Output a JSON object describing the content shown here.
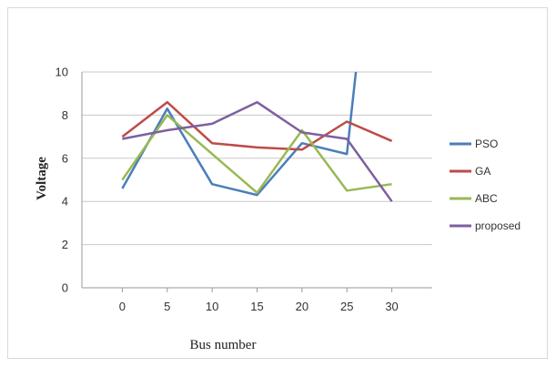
{
  "chart_data": {
    "type": "line",
    "title": "",
    "xlabel": "Bus number",
    "ylabel": "Voltage",
    "x": [
      0,
      5,
      10,
      15,
      20,
      25,
      26,
      30
    ],
    "categories": [
      "0",
      "5",
      "10",
      "15",
      "20",
      "25",
      "30"
    ],
    "ylim": [
      0,
      10
    ],
    "yticks": [
      "0",
      "2",
      "4",
      "6",
      "8",
      "10"
    ],
    "grid": true,
    "legend_position": "right",
    "series": [
      {
        "name": "PSO",
        "color": "#4a7ebb",
        "points": [
          [
            0,
            4.6
          ],
          [
            5,
            8.3
          ],
          [
            10,
            4.8
          ],
          [
            15,
            4.3
          ],
          [
            20,
            6.7
          ],
          [
            25,
            6.2
          ],
          [
            26,
            10
          ]
        ]
      },
      {
        "name": "GA",
        "color": "#be4b48",
        "points": [
          [
            0,
            7.0
          ],
          [
            5,
            8.6
          ],
          [
            10,
            6.7
          ],
          [
            15,
            6.5
          ],
          [
            20,
            6.4
          ],
          [
            25,
            7.7
          ],
          [
            30,
            6.8
          ]
        ]
      },
      {
        "name": "ABC",
        "color": "#98b954",
        "points": [
          [
            0,
            5.0
          ],
          [
            5,
            8.0
          ],
          [
            10,
            6.2
          ],
          [
            15,
            4.4
          ],
          [
            20,
            7.3
          ],
          [
            25,
            4.5
          ],
          [
            30,
            4.8
          ]
        ]
      },
      {
        "name": "proposed",
        "color": "#7d60a0",
        "points": [
          [
            0,
            6.9
          ],
          [
            5,
            7.3
          ],
          [
            10,
            7.6
          ],
          [
            15,
            8.6
          ],
          [
            20,
            7.2
          ],
          [
            25,
            6.9
          ],
          [
            30,
            4.0
          ]
        ]
      }
    ]
  }
}
